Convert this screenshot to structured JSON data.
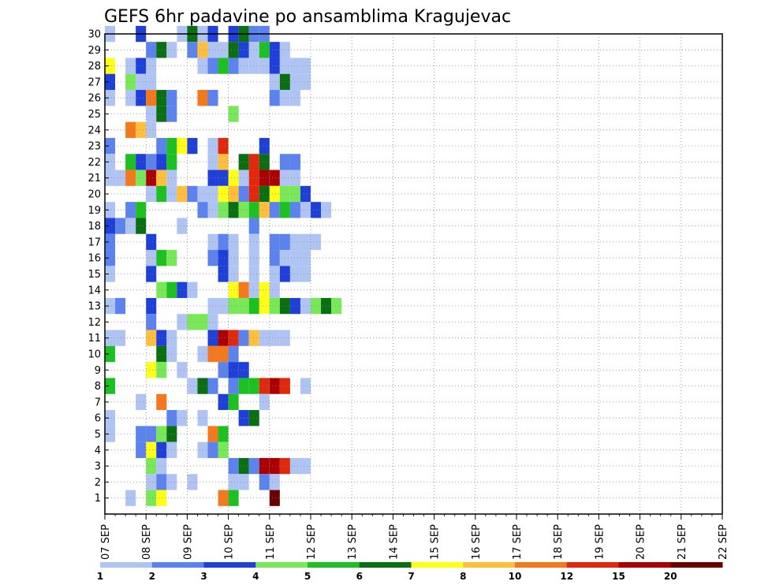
{
  "chart_data": {
    "type": "heatmap",
    "title": "GEFS 6hr padavine po ansamblima Kragujevac",
    "xlabel": "",
    "ylabel": "",
    "x_ticks": [
      "07 SEP",
      "08 SEP",
      "09 SEP",
      "10 SEP",
      "11 SEP",
      "12 SEP",
      "13 SEP",
      "14 SEP",
      "15 SEP",
      "16 SEP",
      "17 SEP",
      "18 SEP",
      "19 SEP",
      "20 SEP",
      "21 SEP",
      "22 SEP"
    ],
    "x_range_days": [
      0,
      15
    ],
    "time_step_hours": 6,
    "y_ticks": [
      "1",
      "2",
      "3",
      "4",
      "5",
      "6",
      "7",
      "8",
      "9",
      "10",
      "11",
      "12",
      "13",
      "14",
      "15",
      "16",
      "17",
      "18",
      "19",
      "20",
      "21",
      "22",
      "23",
      "24",
      "25",
      "26",
      "27",
      "28",
      "29",
      "30"
    ],
    "y_range": [
      0,
      30
    ],
    "grid": true,
    "legend": {
      "placement": "bottom",
      "labels": [
        "1",
        "2",
        "3",
        "4",
        "5",
        "6",
        "7",
        "8",
        "10",
        "12",
        "15",
        "20"
      ],
      "colors": [
        "#b0c4f4",
        "#5c82ee",
        "#1e3fd8",
        "#78e858",
        "#1cc020",
        "#0a6e12",
        "#ffff18",
        "#ffbe3c",
        "#f4781c",
        "#e0280c",
        "#aa0000",
        "#6c0000"
      ]
    },
    "cells": [
      [
        30,
        0,
        1
      ],
      [
        30,
        3,
        3
      ],
      [
        30,
        7,
        1
      ],
      [
        30,
        8,
        6
      ],
      [
        30,
        9,
        1
      ],
      [
        30,
        10,
        3
      ],
      [
        30,
        12,
        3
      ],
      [
        30,
        13,
        6
      ],
      [
        30,
        14,
        2
      ],
      [
        30,
        15,
        2
      ],
      [
        29,
        4,
        2
      ],
      [
        29,
        5,
        6
      ],
      [
        29,
        6,
        1
      ],
      [
        29,
        8,
        2
      ],
      [
        29,
        9,
        8
      ],
      [
        29,
        10,
        1
      ],
      [
        29,
        11,
        1
      ],
      [
        29,
        12,
        6
      ],
      [
        29,
        13,
        3
      ],
      [
        29,
        14,
        1
      ],
      [
        29,
        15,
        5
      ],
      [
        29,
        16,
        3
      ],
      [
        29,
        17,
        1
      ],
      [
        28,
        0,
        7
      ],
      [
        28,
        2,
        1
      ],
      [
        28,
        3,
        3
      ],
      [
        28,
        4,
        1
      ],
      [
        28,
        9,
        1
      ],
      [
        28,
        10,
        2
      ],
      [
        28,
        11,
        5
      ],
      [
        28,
        12,
        2
      ],
      [
        28,
        13,
        1
      ],
      [
        28,
        14,
        1
      ],
      [
        28,
        15,
        1
      ],
      [
        28,
        16,
        3
      ],
      [
        28,
        17,
        1
      ],
      [
        28,
        18,
        1
      ],
      [
        28,
        19,
        1
      ],
      [
        27,
        0,
        3
      ],
      [
        27,
        2,
        4
      ],
      [
        27,
        3,
        1
      ],
      [
        27,
        4,
        1
      ],
      [
        27,
        16,
        1
      ],
      [
        27,
        17,
        6
      ],
      [
        27,
        18,
        1
      ],
      [
        27,
        19,
        1
      ],
      [
        26,
        0,
        1
      ],
      [
        26,
        2,
        1
      ],
      [
        26,
        3,
        3
      ],
      [
        26,
        4,
        9
      ],
      [
        26,
        5,
        6
      ],
      [
        26,
        6,
        2
      ],
      [
        26,
        9,
        9
      ],
      [
        26,
        10,
        2
      ],
      [
        26,
        16,
        2
      ],
      [
        26,
        17,
        1
      ],
      [
        26,
        18,
        1
      ],
      [
        25,
        4,
        1
      ],
      [
        25,
        5,
        6
      ],
      [
        25,
        6,
        2
      ],
      [
        25,
        12,
        4
      ],
      [
        24,
        2,
        9
      ],
      [
        24,
        3,
        8
      ],
      [
        24,
        4,
        1
      ],
      [
        23,
        0,
        2
      ],
      [
        23,
        5,
        2
      ],
      [
        23,
        6,
        5
      ],
      [
        23,
        7,
        7
      ],
      [
        23,
        8,
        3
      ],
      [
        23,
        10,
        1
      ],
      [
        23,
        11,
        10
      ],
      [
        23,
        15,
        3
      ],
      [
        22,
        0,
        1
      ],
      [
        22,
        2,
        5
      ],
      [
        22,
        3,
        3
      ],
      [
        22,
        4,
        2
      ],
      [
        22,
        5,
        3
      ],
      [
        22,
        6,
        5
      ],
      [
        22,
        10,
        1
      ],
      [
        22,
        11,
        8
      ],
      [
        22,
        13,
        6
      ],
      [
        22,
        14,
        10
      ],
      [
        22,
        15,
        6
      ],
      [
        22,
        17,
        2
      ],
      [
        22,
        18,
        2
      ],
      [
        21,
        0,
        1
      ],
      [
        21,
        1,
        1
      ],
      [
        21,
        2,
        9
      ],
      [
        21,
        3,
        4
      ],
      [
        21,
        4,
        11
      ],
      [
        21,
        5,
        8
      ],
      [
        21,
        6,
        1
      ],
      [
        21,
        10,
        3
      ],
      [
        21,
        11,
        3
      ],
      [
        21,
        12,
        7
      ],
      [
        21,
        13,
        1
      ],
      [
        21,
        14,
        10
      ],
      [
        21,
        15,
        11
      ],
      [
        21,
        16,
        11
      ],
      [
        21,
        17,
        1
      ],
      [
        21,
        18,
        1
      ],
      [
        20,
        4,
        1
      ],
      [
        20,
        5,
        5
      ],
      [
        20,
        6,
        1
      ],
      [
        20,
        7,
        8
      ],
      [
        20,
        8,
        2
      ],
      [
        20,
        9,
        1
      ],
      [
        20,
        10,
        1
      ],
      [
        20,
        11,
        7
      ],
      [
        20,
        12,
        8
      ],
      [
        20,
        13,
        2
      ],
      [
        20,
        14,
        10
      ],
      [
        20,
        15,
        6
      ],
      [
        20,
        16,
        7
      ],
      [
        20,
        17,
        4
      ],
      [
        20,
        18,
        4
      ],
      [
        20,
        19,
        3
      ],
      [
        19,
        0,
        1
      ],
      [
        19,
        2,
        2
      ],
      [
        19,
        3,
        5
      ],
      [
        19,
        9,
        2
      ],
      [
        19,
        10,
        1
      ],
      [
        19,
        11,
        4
      ],
      [
        19,
        12,
        6
      ],
      [
        19,
        13,
        4
      ],
      [
        19,
        14,
        5
      ],
      [
        19,
        15,
        8
      ],
      [
        19,
        16,
        2
      ],
      [
        19,
        17,
        5
      ],
      [
        19,
        18,
        2
      ],
      [
        19,
        19,
        1
      ],
      [
        19,
        20,
        3
      ],
      [
        19,
        21,
        1
      ],
      [
        18,
        0,
        3
      ],
      [
        18,
        1,
        2
      ],
      [
        18,
        2,
        1
      ],
      [
        18,
        3,
        6
      ],
      [
        18,
        7,
        1
      ],
      [
        18,
        14,
        2
      ],
      [
        17,
        0,
        2
      ],
      [
        17,
        4,
        3
      ],
      [
        17,
        10,
        1
      ],
      [
        17,
        11,
        2
      ],
      [
        17,
        12,
        1
      ],
      [
        17,
        14,
        1
      ],
      [
        17,
        16,
        2
      ],
      [
        17,
        17,
        2
      ],
      [
        17,
        18,
        1
      ],
      [
        17,
        19,
        1
      ],
      [
        17,
        20,
        1
      ],
      [
        16,
        0,
        2
      ],
      [
        16,
        4,
        1
      ],
      [
        16,
        5,
        5
      ],
      [
        16,
        6,
        4
      ],
      [
        16,
        10,
        2
      ],
      [
        16,
        11,
        3
      ],
      [
        16,
        12,
        1
      ],
      [
        16,
        14,
        1
      ],
      [
        16,
        16,
        2
      ],
      [
        16,
        17,
        1
      ],
      [
        16,
        18,
        1
      ],
      [
        16,
        19,
        1
      ],
      [
        15,
        0,
        1
      ],
      [
        15,
        4,
        3
      ],
      [
        15,
        11,
        3
      ],
      [
        15,
        12,
        1
      ],
      [
        15,
        14,
        1
      ],
      [
        15,
        16,
        1
      ],
      [
        15,
        17,
        3
      ],
      [
        15,
        18,
        1
      ],
      [
        15,
        19,
        1
      ],
      [
        14,
        5,
        4
      ],
      [
        14,
        6,
        5
      ],
      [
        14,
        7,
        3
      ],
      [
        14,
        8,
        1
      ],
      [
        14,
        12,
        7
      ],
      [
        14,
        13,
        9
      ],
      [
        14,
        14,
        1
      ],
      [
        14,
        15,
        7
      ],
      [
        14,
        16,
        1
      ],
      [
        13,
        0,
        1
      ],
      [
        13,
        1,
        2
      ],
      [
        13,
        4,
        3
      ],
      [
        13,
        10,
        1
      ],
      [
        13,
        11,
        1
      ],
      [
        13,
        12,
        4
      ],
      [
        13,
        13,
        4
      ],
      [
        13,
        14,
        5
      ],
      [
        13,
        15,
        7
      ],
      [
        13,
        16,
        4
      ],
      [
        13,
        17,
        6
      ],
      [
        13,
        18,
        3
      ],
      [
        13,
        19,
        1
      ],
      [
        13,
        20,
        4
      ],
      [
        13,
        21,
        6
      ],
      [
        13,
        22,
        4
      ],
      [
        12,
        4,
        2
      ],
      [
        12,
        7,
        1
      ],
      [
        12,
        8,
        4
      ],
      [
        12,
        9,
        4
      ],
      [
        12,
        10,
        1
      ],
      [
        11,
        0,
        1
      ],
      [
        11,
        1,
        1
      ],
      [
        11,
        4,
        8
      ],
      [
        11,
        5,
        3
      ],
      [
        11,
        6,
        1
      ],
      [
        11,
        10,
        3
      ],
      [
        11,
        11,
        11
      ],
      [
        11,
        12,
        10
      ],
      [
        11,
        13,
        2
      ],
      [
        11,
        14,
        8
      ],
      [
        11,
        15,
        1
      ],
      [
        11,
        16,
        1
      ],
      [
        11,
        17,
        1
      ],
      [
        10,
        0,
        5
      ],
      [
        10,
        5,
        6
      ],
      [
        10,
        6,
        1
      ],
      [
        10,
        9,
        1
      ],
      [
        10,
        10,
        9
      ],
      [
        10,
        11,
        9
      ],
      [
        10,
        12,
        2
      ],
      [
        9,
        4,
        7
      ],
      [
        9,
        5,
        4
      ],
      [
        9,
        7,
        1
      ],
      [
        9,
        11,
        2
      ],
      [
        9,
        12,
        3
      ],
      [
        9,
        13,
        3
      ],
      [
        8,
        0,
        5
      ],
      [
        8,
        8,
        1
      ],
      [
        8,
        9,
        6
      ],
      [
        8,
        10,
        2
      ],
      [
        8,
        12,
        2
      ],
      [
        8,
        13,
        5
      ],
      [
        8,
        14,
        5
      ],
      [
        8,
        15,
        10
      ],
      [
        8,
        16,
        11
      ],
      [
        8,
        17,
        10
      ],
      [
        8,
        19,
        1
      ],
      [
        7,
        3,
        1
      ],
      [
        7,
        5,
        9
      ],
      [
        7,
        11,
        3
      ],
      [
        7,
        12,
        5
      ],
      [
        7,
        15,
        1
      ],
      [
        6,
        0,
        1
      ],
      [
        6,
        6,
        2
      ],
      [
        6,
        7,
        1
      ],
      [
        6,
        9,
        1
      ],
      [
        6,
        13,
        3
      ],
      [
        6,
        14,
        6
      ],
      [
        5,
        0,
        1
      ],
      [
        5,
        3,
        2
      ],
      [
        5,
        4,
        2
      ],
      [
        5,
        5,
        4
      ],
      [
        5,
        6,
        6
      ],
      [
        5,
        10,
        9
      ],
      [
        5,
        11,
        5
      ],
      [
        4,
        3,
        2
      ],
      [
        4,
        4,
        7
      ],
      [
        4,
        5,
        3
      ],
      [
        4,
        6,
        1
      ],
      [
        4,
        9,
        1
      ],
      [
        4,
        10,
        2
      ],
      [
        4,
        11,
        4
      ],
      [
        3,
        4,
        4
      ],
      [
        3,
        5,
        1
      ],
      [
        3,
        12,
        2
      ],
      [
        3,
        13,
        6
      ],
      [
        3,
        14,
        2
      ],
      [
        3,
        15,
        11
      ],
      [
        3,
        16,
        11
      ],
      [
        3,
        17,
        10
      ],
      [
        3,
        18,
        1
      ],
      [
        3,
        19,
        1
      ],
      [
        2,
        4,
        1
      ],
      [
        2,
        5,
        2
      ],
      [
        2,
        6,
        1
      ],
      [
        2,
        8,
        1
      ],
      [
        2,
        12,
        1
      ],
      [
        2,
        13,
        1
      ],
      [
        2,
        15,
        2
      ],
      [
        2,
        16,
        1
      ],
      [
        1,
        2,
        1
      ],
      [
        1,
        4,
        4
      ],
      [
        1,
        5,
        7
      ],
      [
        1,
        11,
        9
      ],
      [
        1,
        12,
        5
      ],
      [
        1,
        16,
        12
      ]
    ],
    "cells_note": ""
  }
}
